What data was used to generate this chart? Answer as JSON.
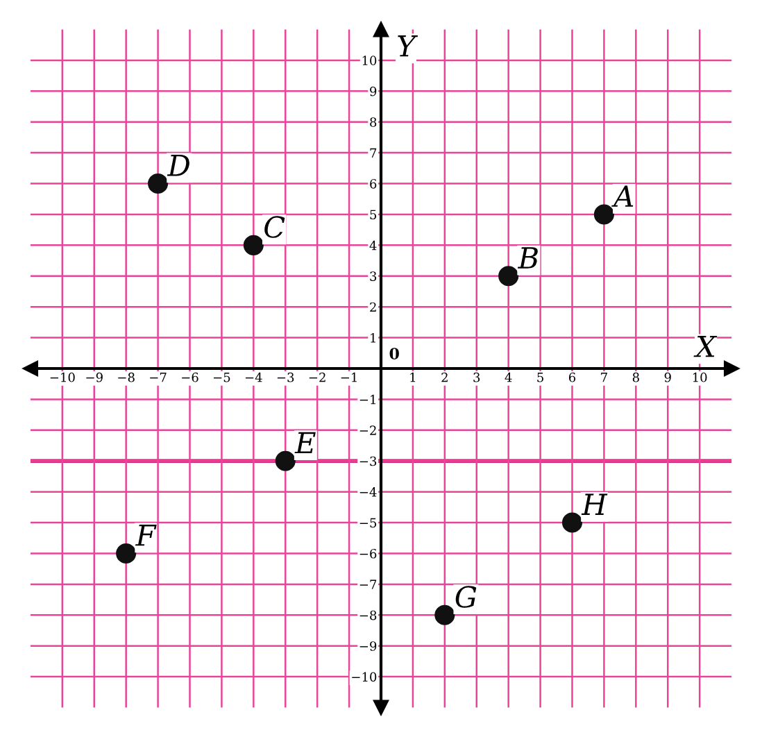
{
  "chart_data": {
    "type": "scatter",
    "xlabel": "X",
    "ylabel": "Y",
    "x": [
      7,
      4,
      -4,
      -7,
      -3,
      -8,
      2,
      6
    ],
    "series": [
      {
        "color": "#111111",
        "values": [
          5,
          3,
          4,
          6,
          -3,
          -6,
          -8,
          -5
        ]
      }
    ],
    "marker": "circle",
    "annotations": [
      {
        "text": "A",
        "x": 7,
        "y": 5
      },
      {
        "text": "B",
        "x": 4,
        "y": 3
      },
      {
        "text": "C",
        "x": -4,
        "y": 4
      },
      {
        "text": "D",
        "x": -7,
        "y": 6
      },
      {
        "text": "E",
        "x": -3,
        "y": -3
      },
      {
        "text": "F",
        "x": -8,
        "y": -6
      },
      {
        "text": "G",
        "x": 2,
        "y": -8
      },
      {
        "text": "H",
        "x": 6,
        "y": -5
      },
      "0"
    ],
    "xlim": [
      -11,
      11
    ],
    "ylim": [
      -11,
      11
    ],
    "xticks": [
      -10,
      -9,
      -8,
      -7,
      -6,
      -5,
      -4,
      -3,
      -2,
      -1,
      1,
      2,
      3,
      4,
      5,
      6,
      7,
      8,
      9,
      10
    ],
    "yticks": [
      -10,
      -9,
      -8,
      -7,
      -6,
      -5,
      -4,
      -3,
      -2,
      -1,
      1,
      2,
      3,
      4,
      5,
      6,
      7,
      8,
      9,
      10
    ],
    "ref_lines": [
      {
        "axis": "y",
        "value": -3,
        "label": null,
        "color": "#d6287a"
      }
    ],
    "grid": true
  }
}
